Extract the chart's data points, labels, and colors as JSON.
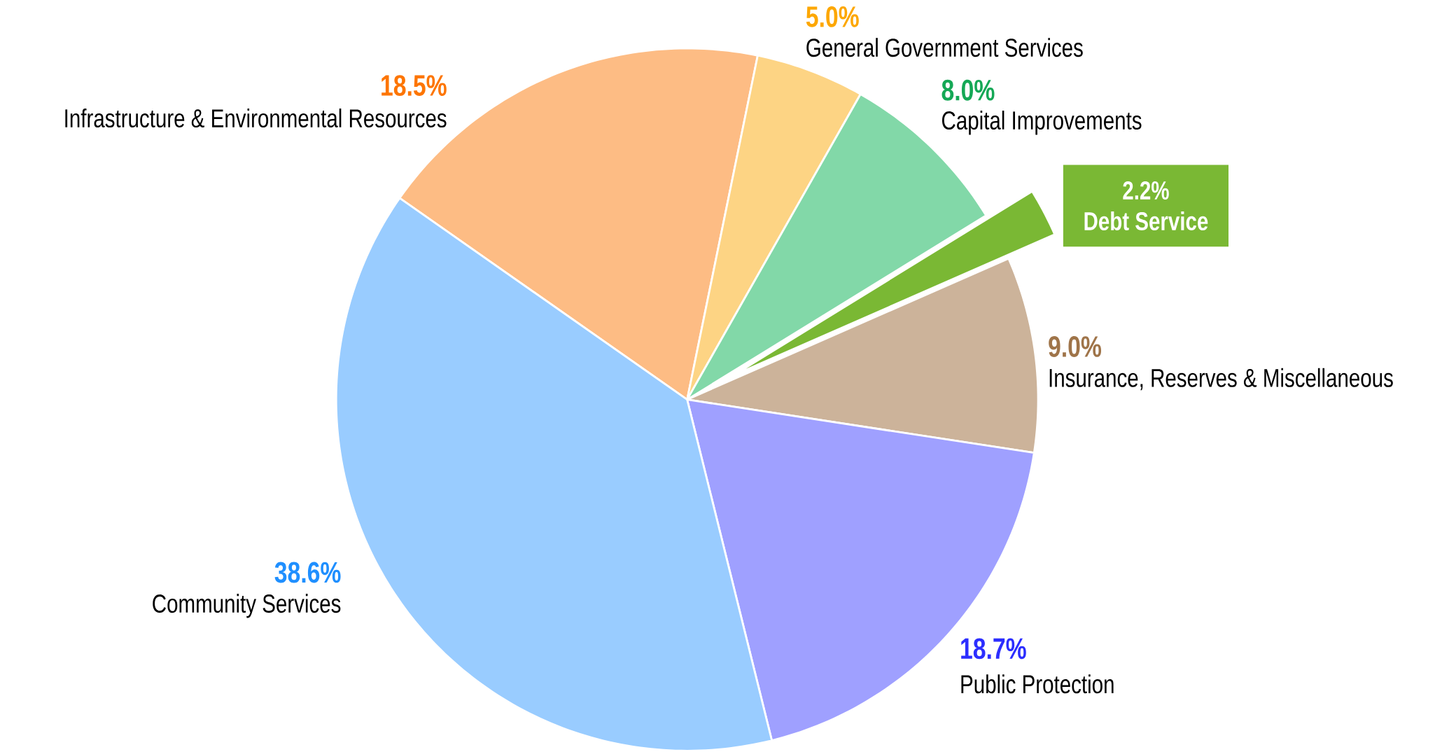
{
  "chart_data": {
    "type": "pie",
    "categories": [
      "Infrastructure & Environmental Resources",
      "General Government Services",
      "Capital Improvements",
      "Debt Service",
      "Insurance, Reserves & Miscellaneous",
      "Public Protection",
      "Community Services"
    ],
    "values": [
      18.5,
      5.0,
      8.0,
      2.2,
      9.0,
      18.7,
      38.6
    ],
    "value_labels": [
      "18.5%",
      "5.0%",
      "8.0%",
      "2.2%",
      "9.0%",
      "18.7%",
      "38.6%"
    ],
    "colors": [
      "#fdbc84",
      "#fdd484",
      "#82d8a8",
      "#7ab834",
      "#ccb39a",
      "#9fa0ff",
      "#99ccff"
    ]
  }
}
